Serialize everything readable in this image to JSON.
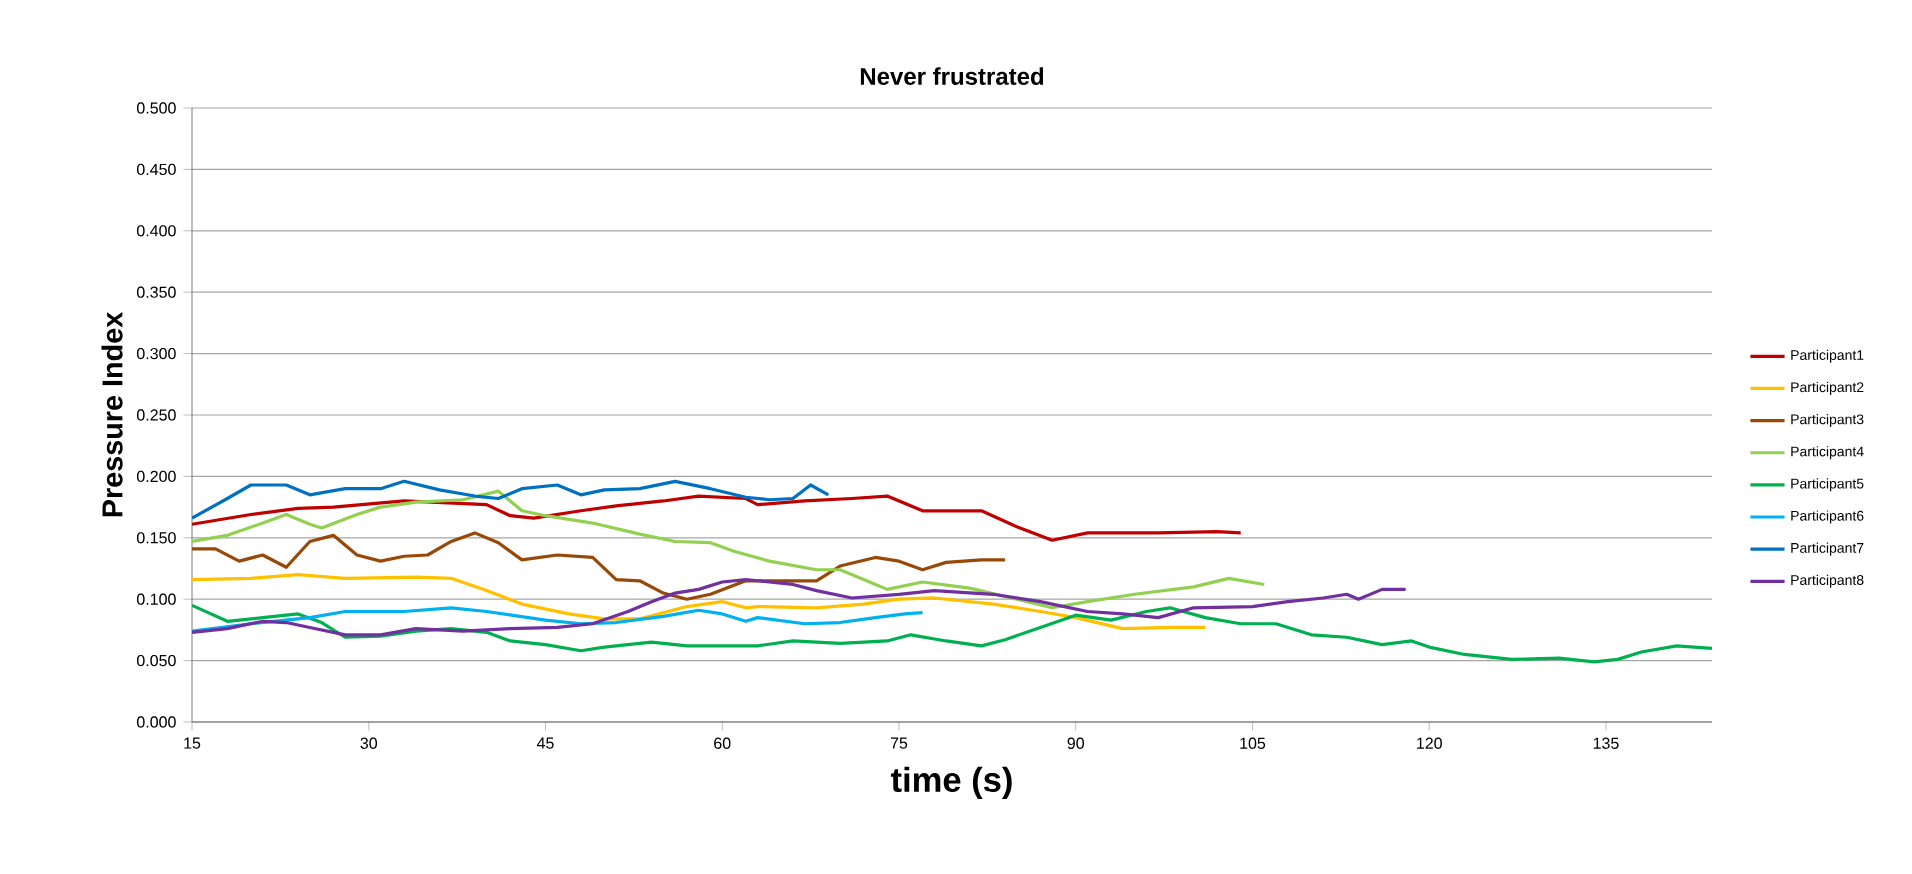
{
  "chart_data": {
    "type": "line",
    "title": "Never frustrated",
    "xlabel": "time (s)",
    "ylabel": "Pressure Index",
    "xlim": [
      15,
      144
    ],
    "xticks": [
      15,
      30,
      45,
      60,
      75,
      90,
      105,
      120,
      135
    ],
    "ylim": [
      0,
      0.5
    ],
    "yticks": [
      {
        "value": 0,
        "label": "0.000"
      },
      {
        "value": 0.05,
        "label": "0.050"
      },
      {
        "value": 0.1,
        "label": "0.100"
      },
      {
        "value": 0.15,
        "label": "0.150"
      },
      {
        "value": 0.2,
        "label": "0.200"
      },
      {
        "value": 0.25,
        "label": "0.250"
      },
      {
        "value": 0.3,
        "label": "0.300"
      },
      {
        "value": 0.35,
        "label": "0.350"
      },
      {
        "value": 0.4,
        "label": "0.400"
      },
      {
        "value": 0.45,
        "label": "0.450"
      },
      {
        "value": 0.5,
        "label": "0.500"
      }
    ],
    "grid": "y",
    "legend": "right",
    "marker": "none",
    "line_style": "solid",
    "series": [
      {
        "name": "Participant1",
        "color": "#c00000",
        "x": [
          15,
          20,
          24,
          27,
          33,
          40,
          42,
          44,
          48,
          51,
          55,
          58,
          62,
          63,
          67,
          71,
          74,
          77,
          82,
          85,
          88,
          91,
          97,
          102,
          104
        ],
        "values": [
          0.161,
          0.169,
          0.174,
          0.175,
          0.18,
          0.177,
          0.168,
          0.166,
          0.172,
          0.176,
          0.18,
          0.184,
          0.182,
          0.177,
          0.18,
          0.182,
          0.184,
          0.172,
          0.172,
          0.159,
          0.148,
          0.154,
          0.154,
          0.155,
          0.154
        ]
      },
      {
        "name": "Participant2",
        "color": "#ffc000",
        "x": [
          15,
          20,
          24,
          28,
          34,
          37,
          40,
          43,
          47,
          50,
          53,
          57,
          60,
          62,
          63,
          68,
          72,
          75,
          78,
          83,
          87,
          90,
          94,
          98,
          101
        ],
        "values": [
          0.116,
          0.117,
          0.12,
          0.117,
          0.118,
          0.117,
          0.107,
          0.096,
          0.088,
          0.084,
          0.084,
          0.094,
          0.098,
          0.093,
          0.094,
          0.093,
          0.096,
          0.1,
          0.101,
          0.096,
          0.09,
          0.085,
          0.076,
          0.077,
          0.077
        ]
      },
      {
        "name": "Participant3",
        "color": "#984807",
        "x": [
          15,
          17,
          19,
          21,
          23,
          25,
          27,
          29,
          31,
          33,
          35,
          37,
          39,
          41,
          43,
          46,
          49,
          51,
          53,
          55,
          57,
          59,
          62,
          64,
          68,
          70,
          73,
          75,
          77,
          79,
          82,
          84
        ],
        "values": [
          0.141,
          0.141,
          0.131,
          0.136,
          0.126,
          0.147,
          0.152,
          0.136,
          0.131,
          0.135,
          0.136,
          0.147,
          0.154,
          0.146,
          0.132,
          0.136,
          0.134,
          0.116,
          0.115,
          0.105,
          0.1,
          0.104,
          0.115,
          0.115,
          0.115,
          0.127,
          0.134,
          0.131,
          0.124,
          0.13,
          0.132,
          0.132
        ]
      },
      {
        "name": "Participant4",
        "color": "#92d050",
        "x": [
          15,
          18,
          21,
          23,
          25,
          26,
          29,
          31,
          34,
          38,
          41,
          43,
          45,
          49,
          53,
          56,
          59,
          61,
          64,
          68,
          70,
          72,
          74,
          77,
          81,
          85,
          88,
          91,
          95,
          100,
          103,
          106
        ],
        "values": [
          0.147,
          0.152,
          0.162,
          0.169,
          0.161,
          0.158,
          0.169,
          0.175,
          0.179,
          0.181,
          0.188,
          0.172,
          0.168,
          0.162,
          0.153,
          0.147,
          0.146,
          0.139,
          0.131,
          0.124,
          0.124,
          0.116,
          0.108,
          0.114,
          0.109,
          0.1,
          0.093,
          0.098,
          0.104,
          0.11,
          0.117,
          0.112
        ]
      },
      {
        "name": "Participant5",
        "color": "#00b050",
        "x": [
          15,
          18,
          21,
          24,
          26,
          28,
          31,
          34,
          37,
          40,
          42,
          45,
          48,
          50,
          54,
          57,
          60,
          63,
          66,
          70,
          74,
          76,
          79,
          82,
          84,
          87,
          90,
          93,
          96,
          98,
          101,
          104,
          107,
          110,
          113,
          116,
          118.5,
          120,
          123,
          127,
          131,
          134,
          136,
          138,
          141,
          144
        ],
        "values": [
          0.095,
          0.082,
          0.085,
          0.088,
          0.081,
          0.069,
          0.07,
          0.074,
          0.076,
          0.073,
          0.066,
          0.063,
          0.058,
          0.061,
          0.065,
          0.062,
          0.062,
          0.062,
          0.066,
          0.064,
          0.066,
          0.071,
          0.066,
          0.062,
          0.067,
          0.077,
          0.087,
          0.083,
          0.09,
          0.093,
          0.085,
          0.08,
          0.08,
          0.071,
          0.069,
          0.063,
          0.066,
          0.061,
          0.055,
          0.051,
          0.052,
          0.049,
          0.051,
          0.057,
          0.062,
          0.06
        ]
      },
      {
        "name": "Participant6",
        "color": "#00b0f0",
        "x": [
          15,
          20,
          25,
          28,
          33,
          37,
          40,
          45,
          48,
          51,
          55,
          58,
          60,
          62,
          63,
          67,
          70,
          73,
          75.5,
          77
        ],
        "values": [
          0.074,
          0.08,
          0.085,
          0.09,
          0.09,
          0.093,
          0.09,
          0.083,
          0.08,
          0.081,
          0.086,
          0.091,
          0.088,
          0.082,
          0.085,
          0.08,
          0.081,
          0.085,
          0.088,
          0.089
        ]
      },
      {
        "name": "Participant7",
        "color": "#0070c0",
        "x": [
          15,
          18,
          20,
          23,
          25,
          28,
          31,
          33,
          36,
          39,
          41,
          43,
          46,
          48,
          50,
          53,
          56,
          59,
          62,
          64,
          66,
          67.5,
          69
        ],
        "values": [
          0.166,
          0.182,
          0.193,
          0.193,
          0.185,
          0.19,
          0.19,
          0.196,
          0.189,
          0.184,
          0.182,
          0.19,
          0.193,
          0.185,
          0.189,
          0.19,
          0.196,
          0.19,
          0.183,
          0.181,
          0.182,
          0.193,
          0.185
        ]
      },
      {
        "name": "Participant8",
        "color": "#7030a0",
        "x": [
          15,
          18,
          21,
          23,
          25,
          28,
          31,
          34,
          38,
          42,
          46,
          49,
          52,
          54,
          56,
          58,
          60,
          62,
          63,
          66,
          68,
          71,
          75,
          78,
          83,
          87,
          91,
          94,
          97,
          100,
          105,
          108,
          111,
          113,
          114,
          116,
          118
        ],
        "values": [
          0.073,
          0.076,
          0.082,
          0.081,
          0.077,
          0.071,
          0.071,
          0.076,
          0.074,
          0.076,
          0.077,
          0.08,
          0.09,
          0.098,
          0.105,
          0.108,
          0.114,
          0.116,
          0.115,
          0.112,
          0.107,
          0.101,
          0.104,
          0.107,
          0.104,
          0.098,
          0.09,
          0.088,
          0.085,
          0.093,
          0.094,
          0.098,
          0.101,
          0.104,
          0.1,
          0.108,
          0.108
        ]
      }
    ]
  }
}
